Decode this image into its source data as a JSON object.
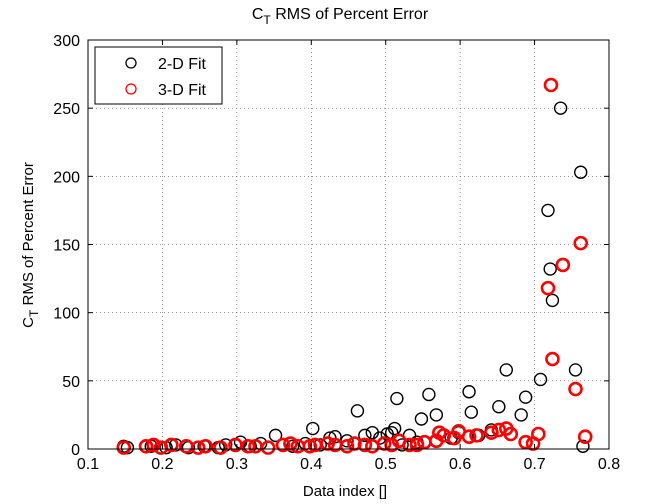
{
  "chart_data": {
    "type": "scatter",
    "title_main": "C",
    "title_sub": "T",
    "title_rest": " RMS of Percent Error",
    "xlabel": "Data index []",
    "ylabel_main": "C",
    "ylabel_sub": "T",
    "ylabel_rest": " RMS of Percent Error",
    "xlim": [
      0.1,
      0.8
    ],
    "ylim": [
      0,
      300
    ],
    "xticks": [
      "0.1",
      "0.2",
      "0.3",
      "0.4",
      "0.5",
      "0.6",
      "0.7",
      "0.8"
    ],
    "yticks": [
      "0",
      "50",
      "100",
      "150",
      "200",
      "250",
      "300"
    ],
    "grid": true,
    "legend_position": "top-left",
    "series": [
      {
        "name": "2-D Fit",
        "color": "#000000",
        "x": [
          0.148,
          0.153,
          0.185,
          0.205,
          0.218,
          0.235,
          0.256,
          0.275,
          0.285,
          0.305,
          0.318,
          0.332,
          0.352,
          0.362,
          0.375,
          0.392,
          0.402,
          0.412,
          0.425,
          0.432,
          0.448,
          0.462,
          0.472,
          0.482,
          0.492,
          0.502,
          0.508,
          0.512,
          0.515,
          0.522,
          0.532,
          0.542,
          0.548,
          0.558,
          0.568,
          0.578,
          0.588,
          0.598,
          0.612,
          0.615,
          0.625,
          0.642,
          0.652,
          0.662,
          0.682,
          0.688,
          0.708,
          0.718,
          0.721,
          0.724,
          0.735,
          0.755,
          0.762,
          0.765
        ],
        "y": [
          2,
          1,
          2,
          1,
          3,
          1,
          2,
          1,
          3,
          5,
          2,
          4,
          10,
          3,
          2,
          4,
          15,
          3,
          8,
          9,
          6,
          28,
          10,
          12,
          8,
          11,
          12,
          15,
          37,
          3,
          10,
          5,
          22,
          40,
          25,
          10,
          8,
          12,
          42,
          27,
          10,
          14,
          31,
          58,
          25,
          38,
          51,
          175,
          132,
          109,
          250,
          58,
          203,
          2
        ]
      },
      {
        "name": "3-D Fit",
        "color": "#ff0000",
        "x": [
          0.148,
          0.178,
          0.188,
          0.198,
          0.212,
          0.232,
          0.248,
          0.258,
          0.278,
          0.298,
          0.315,
          0.325,
          0.342,
          0.362,
          0.372,
          0.382,
          0.398,
          0.405,
          0.422,
          0.432,
          0.448,
          0.458,
          0.472,
          0.482,
          0.498,
          0.508,
          0.518,
          0.532,
          0.542,
          0.552,
          0.568,
          0.572,
          0.578,
          0.592,
          0.598,
          0.612,
          0.622,
          0.642,
          0.652,
          0.662,
          0.668,
          0.688,
          0.698,
          0.705,
          0.718,
          0.722,
          0.724,
          0.738,
          0.755,
          0.762,
          0.768
        ],
        "y": [
          1,
          2,
          3,
          1,
          3,
          2,
          1,
          2,
          1,
          3,
          2,
          2,
          1,
          3,
          4,
          2,
          2,
          3,
          4,
          3,
          2,
          4,
          3,
          2,
          4,
          3,
          6,
          3,
          3,
          5,
          6,
          12,
          10,
          8,
          13,
          9,
          10,
          12,
          14,
          15,
          11,
          5,
          4,
          11,
          118,
          267,
          66,
          135,
          44,
          151,
          9
        ]
      }
    ]
  }
}
